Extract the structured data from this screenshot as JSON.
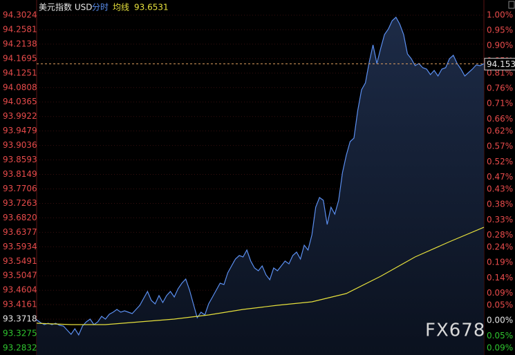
{
  "chart_data": {
    "type": "line",
    "title": "美元指数 USD",
    "annotation": "FX678",
    "values_count_note_free": null,
    "series": [
      {
        "name": "分时",
        "color": "#5b8ff0",
        "values": [
          93.3699,
          93.3614,
          93.3551,
          93.3593,
          93.3551,
          93.3593,
          93.353,
          93.3509,
          93.3382,
          93.3255,
          93.3424,
          93.3234,
          93.3509,
          93.3636,
          93.372,
          93.3551,
          93.3636,
          93.3805,
          93.372,
          93.3868,
          93.3932,
          93.4016,
          93.3932,
          93.3974,
          93.3932,
          93.3889,
          93.4016,
          93.4143,
          93.4355,
          93.4566,
          93.4291,
          93.4185,
          93.4439,
          93.4228,
          93.4439,
          93.4566,
          93.4397,
          93.4651,
          93.482,
          93.4947,
          93.4608,
          93.4185,
          93.3762,
          93.3932,
          93.3847,
          93.4185,
          93.4397,
          93.4608,
          93.482,
          93.4777,
          93.5137,
          93.5348,
          93.556,
          93.5666,
          93.5623,
          93.5835,
          93.5496,
          93.5285,
          93.52,
          93.5348,
          93.5073,
          93.4925,
          93.5285,
          93.52,
          93.5348,
          93.5496,
          93.5412,
          93.5666,
          93.5771,
          93.556,
          93.5983,
          93.5835,
          93.63,
          93.7146,
          93.7442,
          93.7357,
          93.6617,
          93.7146,
          93.6934,
          93.7357,
          93.8203,
          93.8732,
          93.9154,
          93.926,
          94.0106,
          94.074,
          94.0952,
          94.1586,
          94.2115,
          94.1544,
          94.2009,
          94.2432,
          94.2601,
          94.2855,
          94.2961,
          94.2749,
          94.2432,
          94.184,
          94.1692,
          94.148,
          94.1544,
          94.1417,
          94.1375,
          94.1206,
          94.1332,
          94.1163,
          94.1375,
          94.1417,
          94.1692,
          94.1798,
          94.1544,
          94.1375,
          94.1163,
          94.1269,
          94.1375,
          94.1502,
          94.148,
          94.1537
        ]
      },
      {
        "name": "均线",
        "color": "#e6e03c",
        "values": [
          93.3593,
          93.3551,
          93.3551,
          93.3636,
          93.372,
          93.3847,
          93.4016,
          93.4143,
          93.4249,
          93.4503,
          93.5031,
          93.5623,
          93.6088,
          93.6531
        ]
      }
    ],
    "ylim": [
      93.2832,
      94.3024
    ],
    "yticks": [
      94.3024,
      94.2581,
      94.2138,
      94.1695,
      94.1251,
      94.0808,
      94.0365,
      93.9922,
      93.9479,
      93.9036,
      93.8593,
      93.8149,
      93.7706,
      93.7263,
      {
        "value": 93.682,
        "label": "93.6820"
      },
      93.6377,
      93.5934,
      93.5491,
      93.5047,
      93.4604,
      93.4161,
      93.3718,
      93.3275,
      93.2832
    ],
    "y2lim": [
      -0.09,
      1.0
    ],
    "y2ticks": [
      {
        "value": 1.0,
        "label": "1.00%"
      },
      {
        "value": 0.95,
        "label": "0.95%"
      },
      {
        "value": 0.9,
        "label": "0.90%"
      },
      {
        "value": 0.85,
        "label": "0.85%"
      },
      {
        "value": 0.81,
        "label": "0.81%"
      },
      {
        "value": 0.76,
        "label": "0.76%"
      },
      {
        "value": 0.71,
        "label": "0.71%"
      },
      {
        "value": 0.66,
        "label": "0.66%"
      },
      {
        "value": 0.62,
        "label": "0.62%"
      },
      {
        "value": 0.57,
        "label": "0.57%"
      },
      {
        "value": 0.52,
        "label": "0.52%"
      },
      {
        "value": 0.47,
        "label": "0.47%"
      },
      {
        "value": 0.43,
        "label": "0.43%"
      },
      {
        "value": 0.38,
        "label": "0.38%"
      },
      {
        "value": 0.33,
        "label": "0.33%"
      },
      {
        "value": 0.28,
        "label": "0.28%"
      },
      {
        "value": 0.24,
        "label": "0.24%"
      },
      {
        "value": 0.19,
        "label": "0.19%"
      },
      {
        "value": 0.14,
        "label": "0.14%"
      },
      {
        "value": 0.09,
        "label": "0.09%"
      },
      {
        "value": 0.05,
        "label": "0.05%"
      },
      {
        "value": 0.0,
        "label": "0.00%"
      },
      {
        "value": -0.05,
        "label": "0.05%"
      },
      {
        "value": -0.09,
        "label": "0.09%"
      }
    ],
    "grid": true
  }
}
